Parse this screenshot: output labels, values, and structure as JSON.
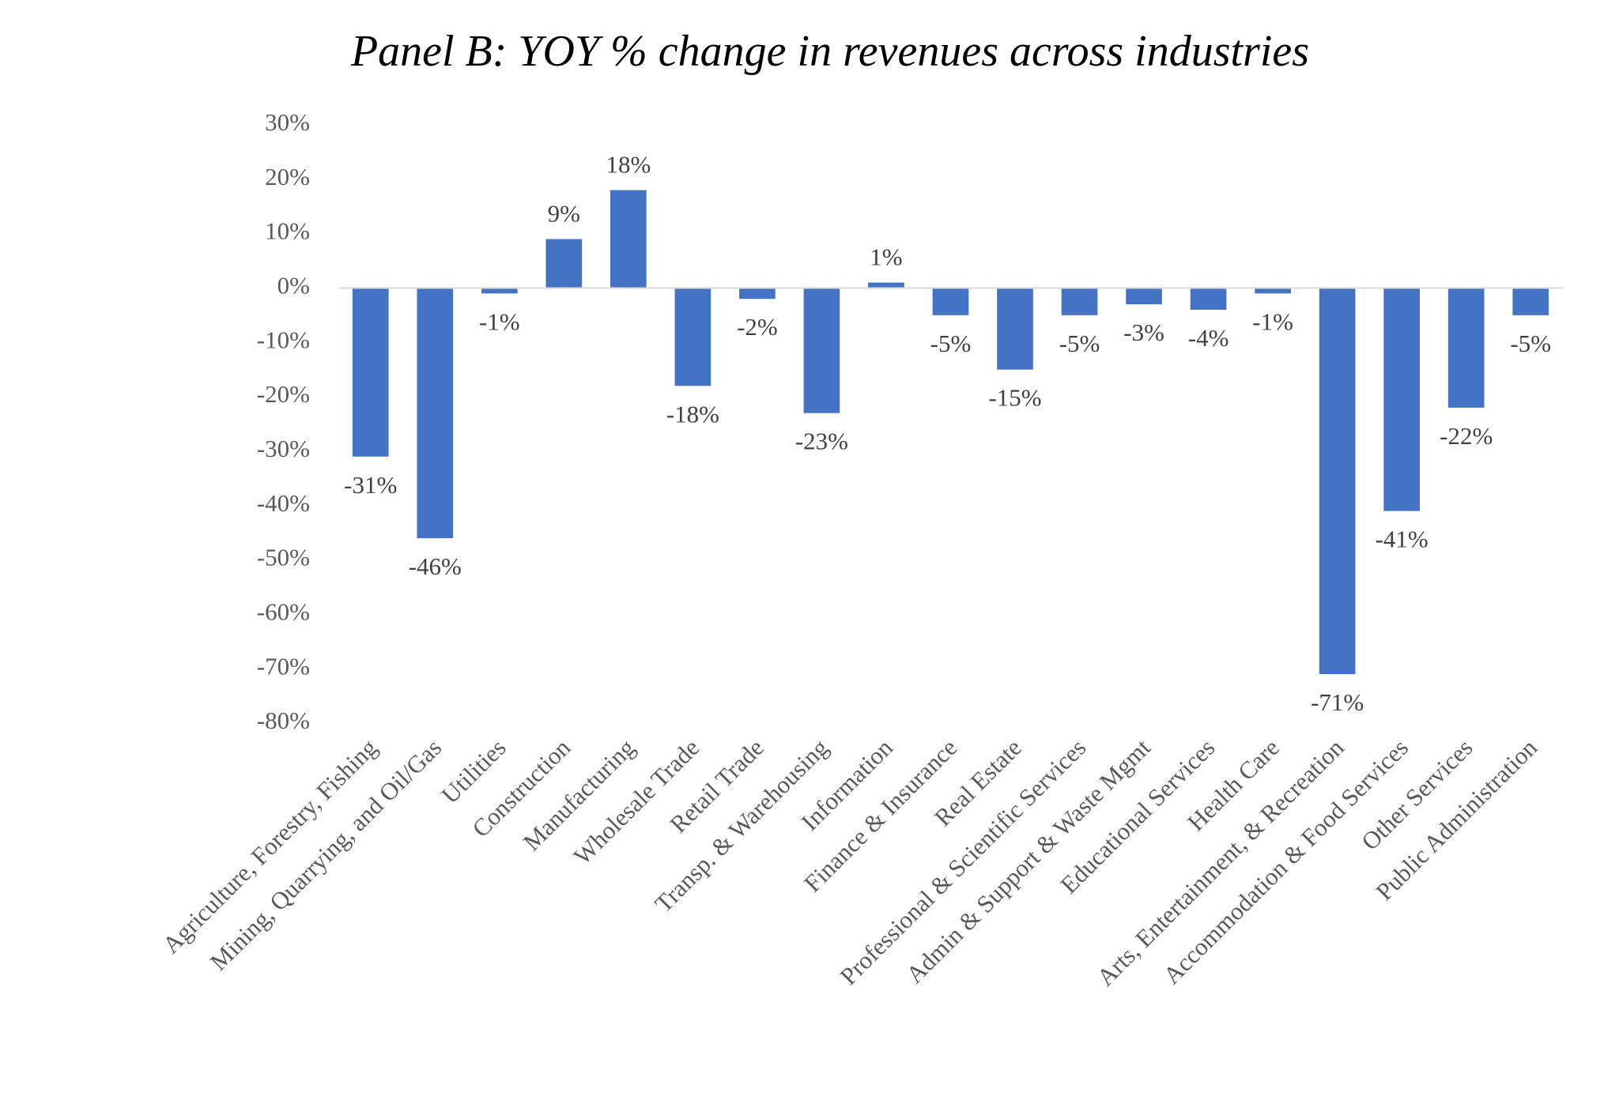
{
  "chart_data": {
    "type": "bar",
    "title": "Panel B: YOY % change in revenues across industries",
    "categories": [
      "Agriculture, Forestry, Fishing",
      "Mining, Quarrying, and Oil/Gas",
      "Utilities",
      "Construction",
      "Manufacturing",
      "Wholesale Trade",
      "Retail Trade",
      "Transp. & Warehousing",
      "Information",
      "Finance & Insurance",
      "Real Estate",
      "Professional & Scientific Services",
      "Admin & Support & Waste Mgmt",
      "Educational Services",
      "Health Care",
      "Arts, Entertainment, & Recreation",
      "Accommodation & Food Services",
      "Other Services",
      "Public Administration"
    ],
    "values": [
      -31,
      -46,
      -1,
      9,
      18,
      -18,
      -2,
      -23,
      1,
      -5,
      -15,
      -5,
      -3,
      -4,
      -1,
      -71,
      -41,
      -22,
      -5
    ],
    "value_labels": [
      "-31%",
      "-46%",
      "-1%",
      "9%",
      "18%",
      "-18%",
      "-2%",
      "-23%",
      "1%",
      "-5%",
      "-15%",
      "-5%",
      "-3%",
      "-4%",
      "-1%",
      "-71%",
      "-41%",
      "-22%",
      "-5%"
    ],
    "color": "#4472c4",
    "ylim": [
      -80,
      30
    ],
    "yticks": [
      {
        "value": 30,
        "label": "30%"
      },
      {
        "value": 20,
        "label": "20%"
      },
      {
        "value": 10,
        "label": "10%"
      },
      {
        "value": 0,
        "label": "0%"
      },
      {
        "value": -10,
        "label": "-10%"
      },
      {
        "value": -20,
        "label": "-20%"
      },
      {
        "value": -30,
        "label": "-30%"
      },
      {
        "value": -40,
        "label": "-40%"
      },
      {
        "value": -50,
        "label": "-50%"
      },
      {
        "value": -60,
        "label": "-60%"
      },
      {
        "value": -70,
        "label": "-70%"
      },
      {
        "value": -80,
        "label": "-80%"
      }
    ],
    "grid": false
  }
}
